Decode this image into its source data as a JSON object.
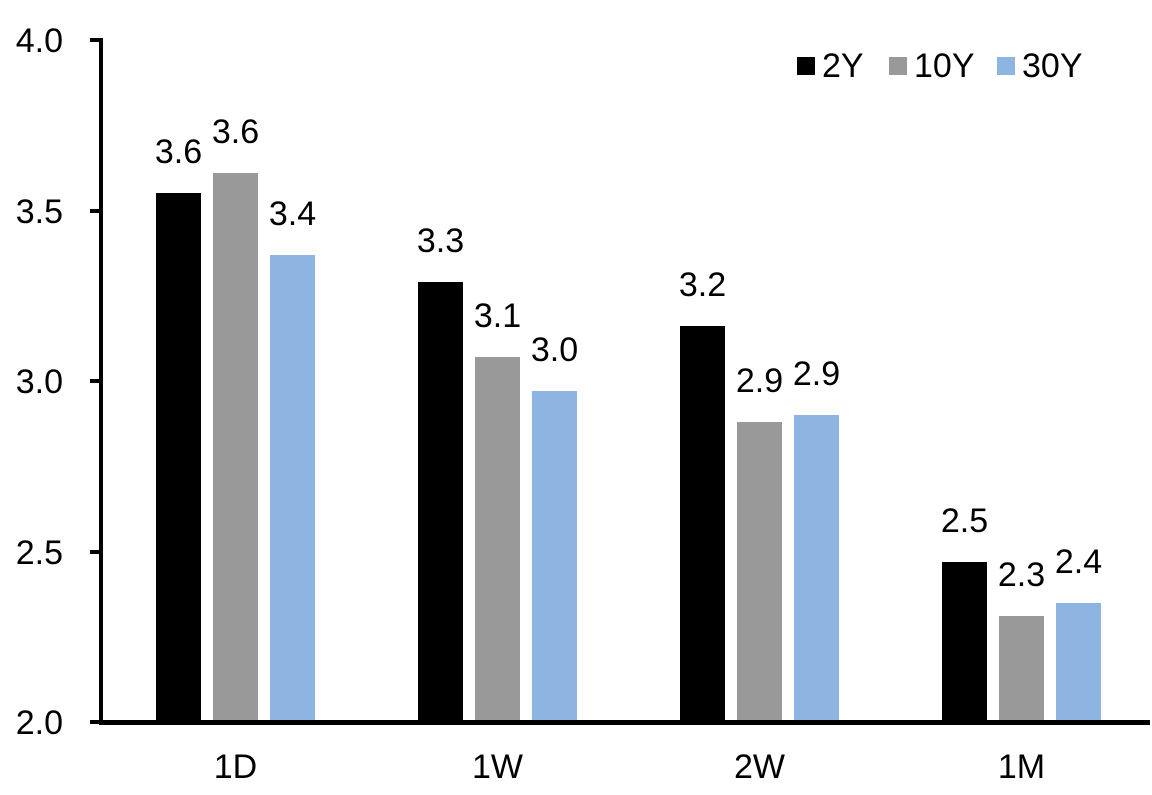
{
  "chart_data": {
    "type": "bar",
    "title": "",
    "categories": [
      "1D",
      "1W",
      "2W",
      "1M"
    ],
    "series": [
      {
        "name": "2Y",
        "color": "#000000",
        "values": [
          3.55,
          3.29,
          3.16,
          2.47
        ],
        "labels": [
          "3.6",
          "3.3",
          "3.2",
          "2.5"
        ]
      },
      {
        "name": "10Y",
        "color": "#999999",
        "values": [
          3.61,
          3.07,
          2.88,
          2.31
        ],
        "labels": [
          "3.6",
          "3.1",
          "2.9",
          "2.3"
        ]
      },
      {
        "name": "30Y",
        "color": "#8EB4E2",
        "values": [
          3.37,
          2.97,
          2.9,
          2.35
        ],
        "labels": [
          "3.4",
          "3.0",
          "2.9",
          "2.4"
        ]
      }
    ],
    "y_axis": {
      "min": 2.0,
      "max": 4.0,
      "tick_step": 0.5,
      "tick_labels": [
        "2.0",
        "2.5",
        "3.0",
        "3.5",
        "4.0"
      ]
    },
    "legend": {
      "position": "top-right",
      "entries": [
        "2Y",
        "10Y",
        "30Y"
      ]
    },
    "grid": false,
    "colors": {
      "background": "#FFFFFF",
      "axis": "#000000",
      "text": "#000000"
    }
  }
}
